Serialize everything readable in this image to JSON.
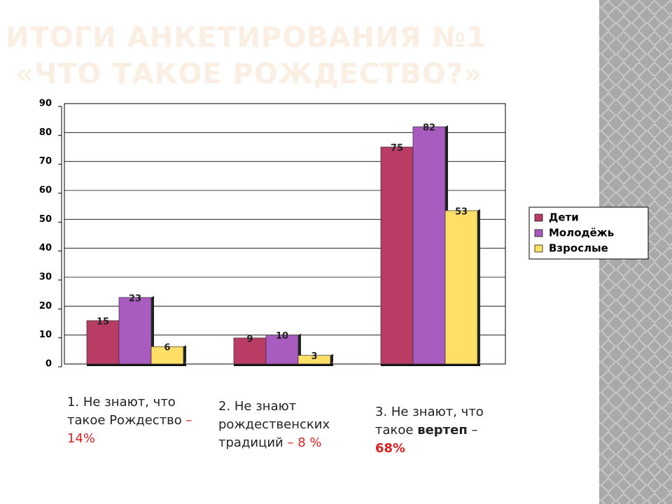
{
  "title": [
    "ИТОГИ АНКЕТИРОВАНИЯ №1",
    "«ЧТО ТАКОЕ РОЖДЕСТВО?»"
  ],
  "chart_data": {
    "type": "bar",
    "categories": [
      null,
      null,
      null
    ],
    "series": [
      {
        "name": "Дети",
        "color": "#b83c63",
        "values": [
          15,
          9,
          75
        ]
      },
      {
        "name": "Молодёжь",
        "color": "#a85cc0",
        "values": [
          23,
          10,
          82
        ]
      },
      {
        "name": "Взрослые",
        "color": "#ffdf66",
        "values": [
          6,
          3,
          53
        ]
      }
    ],
    "ylim": [
      0,
      90
    ],
    "yticks": [
      0,
      10,
      20,
      30,
      40,
      50,
      60,
      70,
      80,
      90
    ],
    "grid": true,
    "legend": "right"
  },
  "captions": [
    [
      {
        "text": "1. Не знают, что такое Рождество "
      },
      {
        "text": "– 14%",
        "style": "red"
      }
    ],
    [
      {
        "text": "2. Не знают рождественских традиций "
      },
      {
        "text": "– 8 %",
        "style": "red"
      }
    ],
    [
      {
        "text": "3. Не знают, что такое "
      },
      {
        "text": "вертеп",
        "style": "bold"
      },
      {
        "text": " – "
      },
      {
        "text": "68%",
        "style": "redbold"
      }
    ]
  ]
}
